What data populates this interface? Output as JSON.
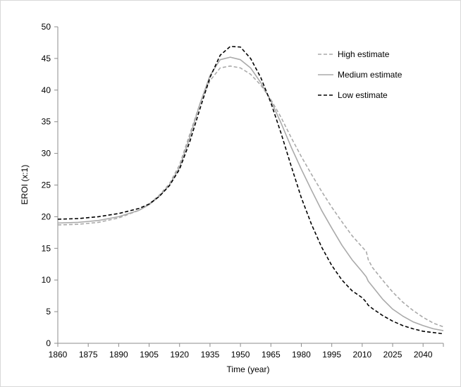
{
  "chart_data": {
    "type": "line",
    "xlabel": "Time (year)",
    "ylabel": "EROI (x:1)",
    "xlim": [
      1860,
      2050
    ],
    "ylim": [
      0,
      50
    ],
    "x_ticks": [
      1860,
      1875,
      1890,
      1905,
      1920,
      1935,
      1950,
      1965,
      1980,
      1995,
      2010,
      2025,
      2040
    ],
    "y_ticks": [
      0,
      5,
      10,
      15,
      20,
      25,
      30,
      35,
      40,
      45,
      50
    ],
    "legend_position": "top-right",
    "grid": false,
    "series": [
      {
        "name": "High estimate",
        "color": "#aaaaaa",
        "style": "dashed",
        "points": [
          [
            1860,
            18.7
          ],
          [
            1870,
            18.8
          ],
          [
            1880,
            19.1
          ],
          [
            1890,
            19.8
          ],
          [
            1900,
            21.0
          ],
          [
            1905,
            22.0
          ],
          [
            1910,
            23.4
          ],
          [
            1915,
            25.2
          ],
          [
            1920,
            28.2
          ],
          [
            1925,
            33.0
          ],
          [
            1930,
            37.8
          ],
          [
            1935,
            41.5
          ],
          [
            1940,
            43.5
          ],
          [
            1945,
            43.8
          ],
          [
            1950,
            43.5
          ],
          [
            1955,
            42.5
          ],
          [
            1960,
            40.8
          ],
          [
            1965,
            38.5
          ],
          [
            1970,
            35.7
          ],
          [
            1975,
            32.5
          ],
          [
            1980,
            29.5
          ],
          [
            1985,
            26.7
          ],
          [
            1990,
            24.0
          ],
          [
            1995,
            21.5
          ],
          [
            2000,
            19.2
          ],
          [
            2005,
            17.0
          ],
          [
            2010,
            15.2
          ],
          [
            2012,
            14.5
          ],
          [
            2013,
            13.2
          ],
          [
            2015,
            12.0
          ],
          [
            2020,
            10.0
          ],
          [
            2025,
            8.1
          ],
          [
            2030,
            6.5
          ],
          [
            2035,
            5.2
          ],
          [
            2040,
            4.1
          ],
          [
            2045,
            3.2
          ],
          [
            2050,
            2.6
          ]
        ]
      },
      {
        "name": "Medium estimate",
        "color": "#aaaaaa",
        "style": "solid",
        "points": [
          [
            1860,
            19.0
          ],
          [
            1870,
            19.1
          ],
          [
            1880,
            19.4
          ],
          [
            1890,
            20.0
          ],
          [
            1900,
            21.0
          ],
          [
            1905,
            21.9
          ],
          [
            1910,
            23.2
          ],
          [
            1915,
            25.0
          ],
          [
            1920,
            27.8
          ],
          [
            1925,
            32.5
          ],
          [
            1930,
            37.8
          ],
          [
            1935,
            42.3
          ],
          [
            1940,
            44.8
          ],
          [
            1945,
            45.2
          ],
          [
            1950,
            44.8
          ],
          [
            1955,
            43.5
          ],
          [
            1960,
            41.2
          ],
          [
            1965,
            38.3
          ],
          [
            1970,
            34.8
          ],
          [
            1975,
            31.0
          ],
          [
            1980,
            27.5
          ],
          [
            1985,
            24.2
          ],
          [
            1990,
            21.0
          ],
          [
            1995,
            18.2
          ],
          [
            2000,
            15.5
          ],
          [
            2005,
            13.2
          ],
          [
            2010,
            11.3
          ],
          [
            2012,
            10.5
          ],
          [
            2013,
            9.8
          ],
          [
            2015,
            9.0
          ],
          [
            2020,
            7.0
          ],
          [
            2025,
            5.4
          ],
          [
            2030,
            4.3
          ],
          [
            2035,
            3.4
          ],
          [
            2040,
            2.8
          ],
          [
            2045,
            2.3
          ],
          [
            2050,
            2.0
          ]
        ]
      },
      {
        "name": "Low estimate",
        "color": "#000000",
        "style": "dashed",
        "points": [
          [
            1860,
            19.6
          ],
          [
            1870,
            19.7
          ],
          [
            1880,
            20.0
          ],
          [
            1890,
            20.5
          ],
          [
            1900,
            21.3
          ],
          [
            1905,
            22.0
          ],
          [
            1910,
            23.2
          ],
          [
            1915,
            24.9
          ],
          [
            1920,
            27.5
          ],
          [
            1925,
            31.8
          ],
          [
            1930,
            37.0
          ],
          [
            1935,
            42.0
          ],
          [
            1940,
            45.5
          ],
          [
            1945,
            46.9
          ],
          [
            1950,
            46.8
          ],
          [
            1955,
            45.0
          ],
          [
            1960,
            42.0
          ],
          [
            1965,
            38.0
          ],
          [
            1970,
            33.2
          ],
          [
            1975,
            28.0
          ],
          [
            1980,
            23.0
          ],
          [
            1985,
            18.8
          ],
          [
            1990,
            15.2
          ],
          [
            1995,
            12.3
          ],
          [
            2000,
            10.0
          ],
          [
            2005,
            8.3
          ],
          [
            2010,
            7.2
          ],
          [
            2012,
            6.5
          ],
          [
            2013,
            6.0
          ],
          [
            2015,
            5.5
          ],
          [
            2020,
            4.4
          ],
          [
            2025,
            3.5
          ],
          [
            2030,
            2.8
          ],
          [
            2035,
            2.3
          ],
          [
            2040,
            1.9
          ],
          [
            2045,
            1.7
          ],
          [
            2050,
            1.5
          ]
        ]
      }
    ]
  }
}
